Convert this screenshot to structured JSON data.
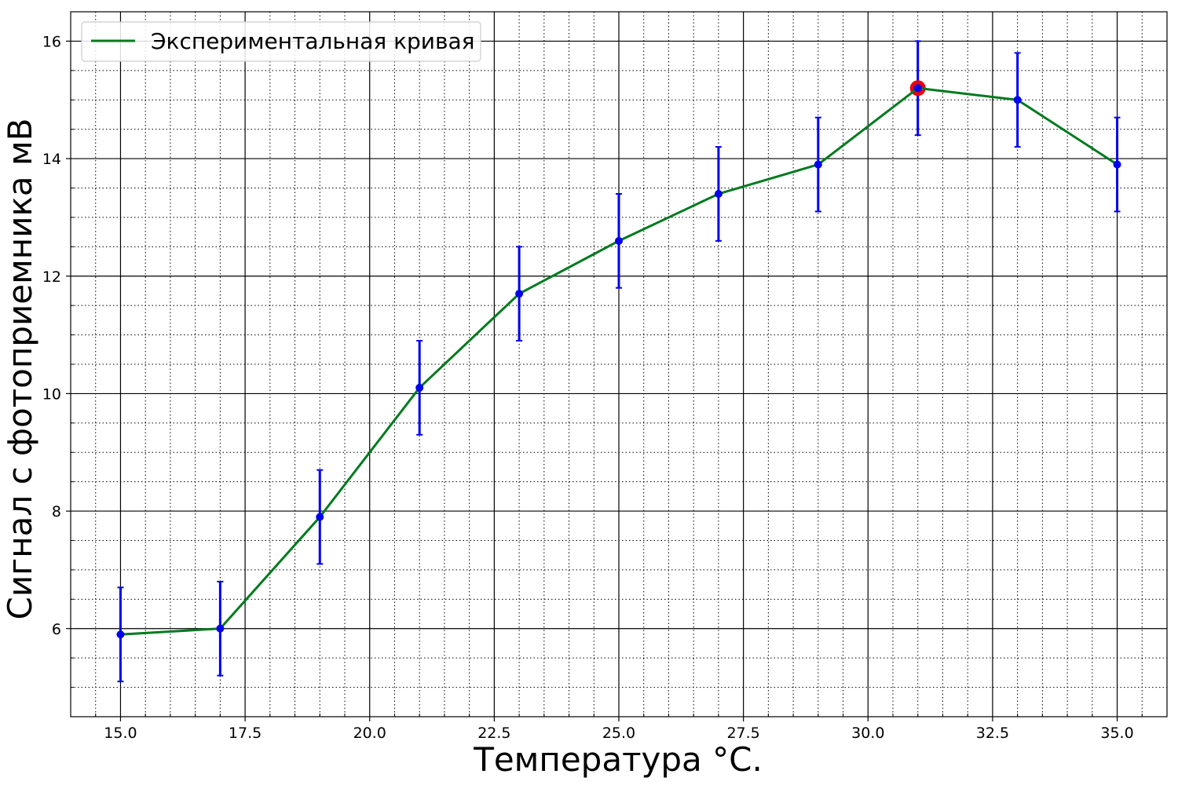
{
  "chart_data": {
    "type": "line",
    "title": "",
    "xlabel": "Температура °C.",
    "ylabel": "Сигнал с фотоприемника мВ",
    "xlim": [
      14.0,
      36.0
    ],
    "ylim": [
      4.5,
      16.5
    ],
    "x_ticks": [
      15.0,
      17.5,
      20.0,
      22.5,
      25.0,
      27.5,
      30.0,
      32.5,
      35.0
    ],
    "x_tick_labels": [
      "15.0",
      "17.5",
      "20.0",
      "22.5",
      "25.0",
      "27.5",
      "30.0",
      "32.5",
      "35.0"
    ],
    "y_ticks": [
      6,
      8,
      10,
      12,
      14,
      16
    ],
    "y_tick_labels": [
      "6",
      "8",
      "10",
      "12",
      "14",
      "16"
    ],
    "x_minor_step": 0.5,
    "y_minor_step": 0.5,
    "grid": true,
    "grid_major": true,
    "grid_minor": true,
    "legend_position": "top-left",
    "series": [
      {
        "name": "Экспериментальная кривая",
        "color": "#007a1e",
        "marker_color": "#0000ee",
        "errorbar_color": "#0000ee",
        "x": [
          15,
          17,
          19,
          21,
          23,
          25,
          27,
          29,
          31,
          33,
          35
        ],
        "y": [
          5.9,
          6.0,
          7.9,
          10.1,
          11.7,
          12.6,
          13.4,
          13.9,
          15.2,
          15.0,
          13.9
        ],
        "yerr": [
          0.8,
          0.8,
          0.8,
          0.8,
          0.8,
          0.8,
          0.8,
          0.8,
          0.8,
          0.8,
          0.8
        ]
      }
    ],
    "highlight": {
      "x": 31,
      "y": 15.2,
      "color": "#e8000b"
    }
  }
}
